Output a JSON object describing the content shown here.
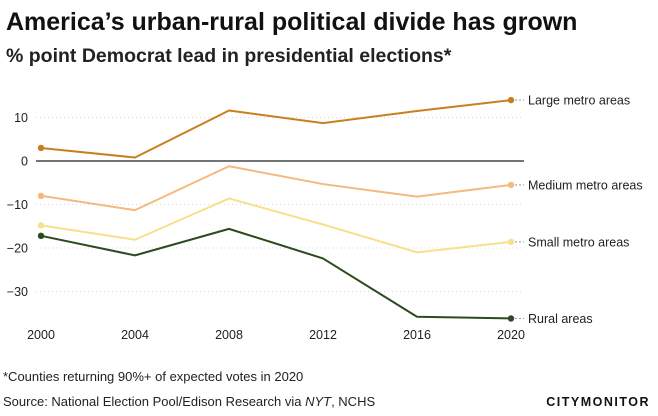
{
  "title": "America’s urban-rural political divide has grown",
  "subtitle": "% point Democrat lead in presidential elections*",
  "footnote": "*Counties returning 90%+ of expected votes in 2020",
  "source": {
    "prefix": "Source: National Election Pool/Edison Research via ",
    "publication": "NYT",
    "suffix": ", NCHS"
  },
  "logo": "CITYMONITOR",
  "chart_data": {
    "type": "line",
    "x": [
      2000,
      2004,
      2008,
      2012,
      2016,
      2020
    ],
    "xlim": [
      2000,
      2020
    ],
    "ylim": [
      -38,
      16
    ],
    "yticks": [
      10,
      0,
      -10,
      -20,
      -30
    ],
    "ytick_labels": [
      "10",
      "0",
      "−10",
      "−20",
      "−30"
    ],
    "xtick_labels": [
      "2000",
      "2004",
      "2008",
      "2012",
      "2016",
      "2020"
    ],
    "grid": "horizontal dotted",
    "legend": "direct labels at right end of each line",
    "series": [
      {
        "name": "Large metro areas",
        "values": [
          3,
          0.8,
          11.6,
          8.7,
          11.5,
          14
        ],
        "color": "#c87f1f"
      },
      {
        "name": "Medium metro areas",
        "values": [
          -8,
          -11.3,
          -1.2,
          -5.3,
          -8.2,
          -5.5
        ],
        "color": "#f4b97c"
      },
      {
        "name": "Small metro areas",
        "values": [
          -14.8,
          -18.1,
          -8.6,
          -14.6,
          -21,
          -18.6
        ],
        "color": "#f6e08c"
      },
      {
        "name": "Rural areas",
        "values": [
          -17.2,
          -21.7,
          -15.6,
          -22.4,
          -35.8,
          -36.2
        ],
        "color": "#2d4a1f"
      }
    ]
  }
}
